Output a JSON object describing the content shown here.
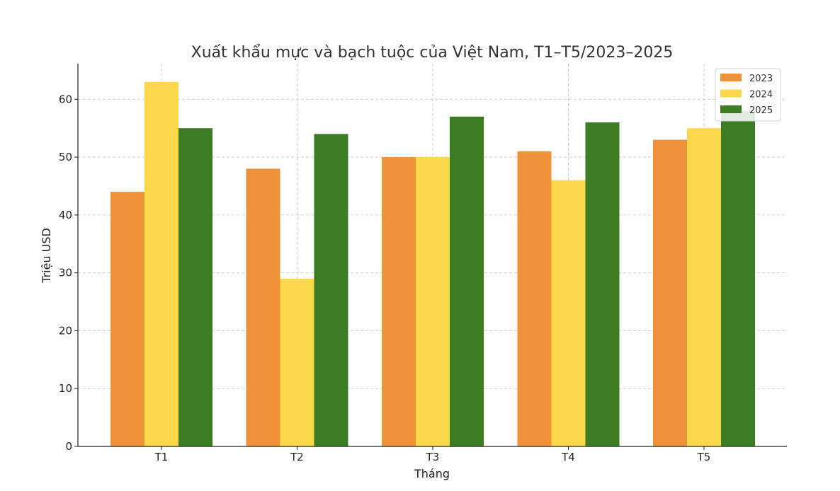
{
  "chart_data": {
    "type": "bar",
    "title": "Xuất khẩu mực và bạch tuộc của Việt Nam, T1–T5/2023–2025",
    "xlabel": "Tháng",
    "ylabel": "Triệu USD",
    "categories": [
      "T1",
      "T2",
      "T3",
      "T4",
      "T5"
    ],
    "series": [
      {
        "name": "2023",
        "color": "#F0923A",
        "values": [
          44,
          48,
          50,
          51,
          53
        ]
      },
      {
        "name": "2024",
        "color": "#F9D84A",
        "values": [
          63,
          29,
          50,
          46,
          55
        ]
      },
      {
        "name": "2025",
        "color": "#3A7D22",
        "values": [
          55,
          54,
          57,
          56,
          58
        ]
      }
    ],
    "ylim": [
      0,
      66.15
    ],
    "yticks": [
      0,
      10,
      20,
      30,
      40,
      50,
      60
    ],
    "grid": true,
    "legend_position": "top-right"
  }
}
